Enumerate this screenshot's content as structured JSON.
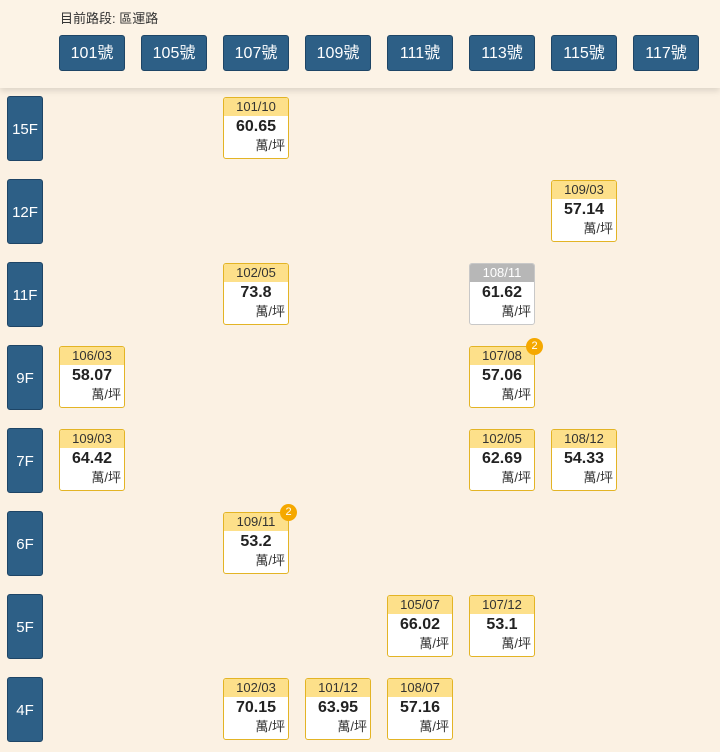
{
  "header": {
    "road_label": "目前路段: 區運路",
    "houses": [
      "101號",
      "105號",
      "107號",
      "109號",
      "111號",
      "113號",
      "115號",
      "117號"
    ]
  },
  "floors": [
    "15F",
    "12F",
    "11F",
    "9F",
    "7F",
    "6F",
    "5F",
    "4F"
  ],
  "unit": "萬/坪",
  "records": [
    {
      "floor": "15F",
      "house": "107號",
      "date": "101/10",
      "price": "60.65"
    },
    {
      "floor": "12F",
      "house": "115號",
      "date": "109/03",
      "price": "57.14"
    },
    {
      "floor": "11F",
      "house": "107號",
      "date": "102/05",
      "price": "73.8"
    },
    {
      "floor": "11F",
      "house": "113號",
      "date": "108/11",
      "price": "61.62",
      "style": "gray"
    },
    {
      "floor": "9F",
      "house": "101號",
      "date": "106/03",
      "price": "58.07"
    },
    {
      "floor": "9F",
      "house": "113號",
      "date": "107/08",
      "price": "57.06",
      "badge": "2"
    },
    {
      "floor": "7F",
      "house": "101號",
      "date": "109/03",
      "price": "64.42"
    },
    {
      "floor": "7F",
      "house": "113號",
      "date": "102/05",
      "price": "62.69"
    },
    {
      "floor": "7F",
      "house": "115號",
      "date": "108/12",
      "price": "54.33"
    },
    {
      "floor": "6F",
      "house": "107號",
      "date": "109/11",
      "price": "53.2",
      "badge": "2"
    },
    {
      "floor": "5F",
      "house": "111號",
      "date": "105/07",
      "price": "66.02"
    },
    {
      "floor": "5F",
      "house": "113號",
      "date": "107/12",
      "price": "53.1"
    },
    {
      "floor": "4F",
      "house": "107號",
      "date": "102/03",
      "price": "70.15"
    },
    {
      "floor": "4F",
      "house": "109號",
      "date": "101/12",
      "price": "63.95"
    },
    {
      "floor": "4F",
      "house": "111號",
      "date": "108/07",
      "price": "57.16"
    }
  ]
}
